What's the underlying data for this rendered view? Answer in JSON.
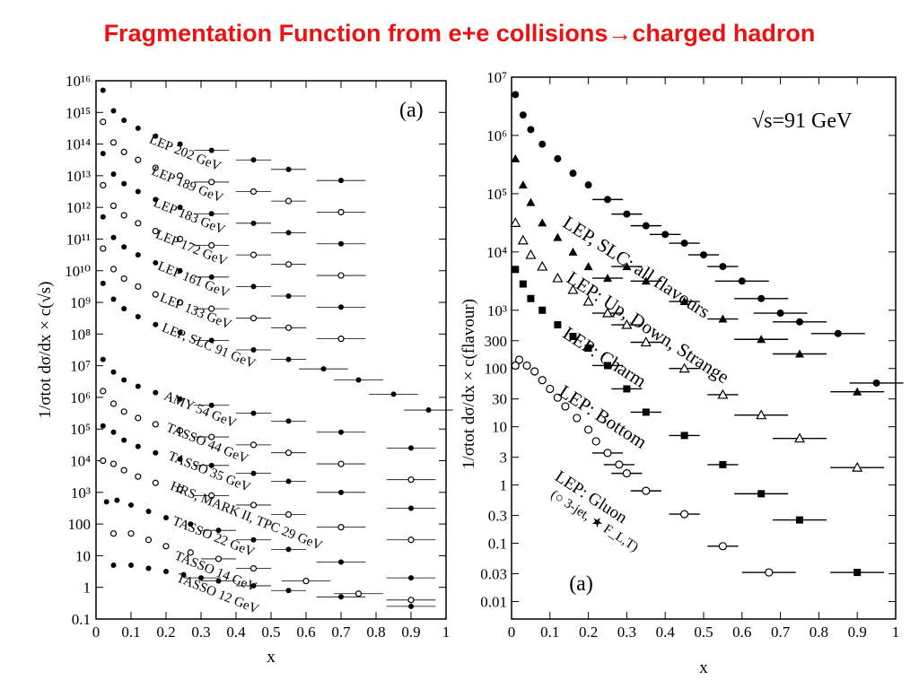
{
  "title": {
    "text": "Fragmentation Function from e+e collisions",
    "arrow": "→",
    "suffix": "charged hadron"
  },
  "chart_data": [
    {
      "type": "scatter",
      "panel_label": "(a)",
      "xlabel": "x",
      "ylabel": "1/σtot dσ/dx × c(√s)",
      "xlim": [
        0,
        1
      ],
      "ylim_log10": [
        -1,
        16
      ],
      "yscale": "log",
      "x_ticks": [
        "0",
        "0.1",
        "0.2",
        "0.3",
        "0.4",
        "0.5",
        "0.6",
        "0.7",
        "0.8",
        "0.9",
        "1"
      ],
      "y_ticks": [
        "0.1",
        "1",
        "10",
        "100",
        "10³",
        "10⁴",
        "10⁵",
        "10⁶",
        "10⁷",
        "10⁸",
        "10⁹",
        "10¹⁰",
        "10¹¹",
        "10¹²",
        "10¹³",
        "10¹⁴",
        "10¹⁵",
        "10¹⁶"
      ],
      "series": [
        {
          "name": "LEP 202 GeV",
          "marker": "filled",
          "scale": 15.7,
          "x": [
            0.02,
            0.05,
            0.08,
            0.12,
            0.17,
            0.24,
            0.33,
            0.45,
            0.55,
            0.7
          ],
          "y": [
            15.7,
            15.05,
            14.75,
            14.5,
            14.25,
            14.0,
            13.8,
            13.5,
            13.2,
            12.85
          ],
          "label": "LEP 202 GeV"
        },
        {
          "name": "LEP 189 GeV",
          "marker": "open",
          "scale": 14.7,
          "x": [
            0.02,
            0.05,
            0.08,
            0.12,
            0.17,
            0.24,
            0.33,
            0.45,
            0.55,
            0.7
          ],
          "y": [
            14.7,
            14.05,
            13.75,
            13.5,
            13.25,
            13.0,
            12.8,
            12.5,
            12.2,
            11.85
          ],
          "label": "LEP 189 GeV"
        },
        {
          "name": "LEP 183 GeV",
          "marker": "filled",
          "scale": 13.7,
          "x": [
            0.02,
            0.05,
            0.08,
            0.12,
            0.17,
            0.24,
            0.33,
            0.45,
            0.55,
            0.7
          ],
          "y": [
            13.7,
            13.05,
            12.75,
            12.5,
            12.25,
            12.0,
            11.8,
            11.5,
            11.2,
            10.85
          ],
          "label": "LEP 183 GeV"
        },
        {
          "name": "LEP 172 GeV",
          "marker": "open",
          "scale": 12.7,
          "x": [
            0.02,
            0.05,
            0.08,
            0.12,
            0.17,
            0.24,
            0.33,
            0.45,
            0.55,
            0.7
          ],
          "y": [
            12.7,
            12.05,
            11.75,
            11.5,
            11.25,
            11.0,
            10.8,
            10.5,
            10.2,
            9.85
          ],
          "label": "LEP 172 GeV"
        },
        {
          "name": "LEP 161 GeV",
          "marker": "filled",
          "scale": 11.7,
          "x": [
            0.02,
            0.05,
            0.08,
            0.12,
            0.17,
            0.24,
            0.33,
            0.45,
            0.55,
            0.7
          ],
          "y": [
            11.7,
            11.05,
            10.75,
            10.5,
            10.25,
            10.0,
            9.8,
            9.5,
            9.2,
            8.85
          ],
          "label": "LEP 161 GeV"
        },
        {
          "name": "LEP 133 GeV",
          "marker": "open",
          "scale": 10.7,
          "x": [
            0.02,
            0.05,
            0.08,
            0.12,
            0.17,
            0.24,
            0.33,
            0.45,
            0.55,
            0.7
          ],
          "y": [
            10.7,
            10.05,
            9.75,
            9.5,
            9.25,
            9.0,
            8.8,
            8.5,
            8.2,
            7.85
          ],
          "label": "LEP 133 GeV"
        },
        {
          "name": "LEP, SLC 91 GeV",
          "marker": "filled",
          "scale": 9.7,
          "x": [
            0.02,
            0.05,
            0.08,
            0.12,
            0.17,
            0.24,
            0.33,
            0.45,
            0.55,
            0.65,
            0.75,
            0.85,
            0.95
          ],
          "y": [
            9.6,
            9.1,
            8.8,
            8.55,
            8.3,
            8.05,
            7.8,
            7.5,
            7.2,
            6.9,
            6.55,
            6.1,
            5.6
          ],
          "label": "LEP, SLC 91 GeV"
        },
        {
          "name": "AMY 54 GeV",
          "marker": "filled",
          "scale": 7.2,
          "x": [
            0.02,
            0.05,
            0.08,
            0.12,
            0.17,
            0.24,
            0.33,
            0.45,
            0.55,
            0.7,
            0.9
          ],
          "y": [
            7.2,
            6.8,
            6.55,
            6.35,
            6.15,
            5.95,
            5.75,
            5.5,
            5.25,
            4.9,
            4.4
          ],
          "label": "AMY 54 GeV"
        },
        {
          "name": "TASSO 44 GeV",
          "marker": "open",
          "scale": 6.2,
          "x": [
            0.02,
            0.05,
            0.08,
            0.12,
            0.17,
            0.24,
            0.33,
            0.45,
            0.55,
            0.7,
            0.9
          ],
          "y": [
            6.2,
            5.8,
            5.55,
            5.35,
            5.15,
            4.95,
            4.75,
            4.5,
            4.25,
            3.9,
            3.4
          ],
          "label": "TASSO 44 GeV"
        },
        {
          "name": "TASSO 35 GeV",
          "marker": "filled",
          "scale": 5.2,
          "x": [
            0.02,
            0.05,
            0.08,
            0.12,
            0.17,
            0.24,
            0.33,
            0.45,
            0.55,
            0.7,
            0.9
          ],
          "y": [
            5.1,
            4.9,
            4.65,
            4.45,
            4.25,
            4.05,
            3.85,
            3.6,
            3.35,
            3.0,
            2.5
          ],
          "label": "TASSO 35 GeV"
        },
        {
          "name": "HRS, MARK II, TPC 29 GeV",
          "marker": "open",
          "scale": 4.2,
          "x": [
            0.02,
            0.05,
            0.08,
            0.12,
            0.17,
            0.24,
            0.33,
            0.45,
            0.55,
            0.7,
            0.9
          ],
          "y": [
            4.0,
            3.9,
            3.7,
            3.5,
            3.3,
            3.1,
            2.9,
            2.6,
            2.3,
            1.9,
            1.5
          ],
          "label": "HRS, MARK II, TPC 29 GeV"
        },
        {
          "name": "TASSO 22 GeV",
          "marker": "filled",
          "scale": 2.8,
          "x": [
            0.03,
            0.06,
            0.1,
            0.15,
            0.2,
            0.27,
            0.35,
            0.45,
            0.55,
            0.7,
            0.9
          ],
          "y": [
            2.7,
            2.75,
            2.6,
            2.4,
            2.2,
            2.0,
            1.8,
            1.5,
            1.2,
            0.8,
            0.3
          ],
          "label": "TASSO 22 GeV"
        },
        {
          "name": "TASSO 14 GeV",
          "marker": "open",
          "scale": 1.8,
          "x": [
            0.05,
            0.1,
            0.15,
            0.2,
            0.27,
            0.35,
            0.45,
            0.6,
            0.75,
            0.9
          ],
          "y": [
            1.7,
            1.7,
            1.5,
            1.3,
            1.1,
            0.9,
            0.6,
            0.2,
            -0.2,
            -0.4
          ],
          "label": "TASSO 14 GeV"
        },
        {
          "name": "TASSO 12 GeV",
          "marker": "filled",
          "scale": 0.8,
          "x": [
            0.05,
            0.1,
            0.15,
            0.2,
            0.25,
            0.3,
            0.35,
            0.45,
            0.55,
            0.7,
            0.9
          ],
          "y": [
            0.7,
            0.7,
            0.6,
            0.5,
            0.4,
            0.3,
            0.2,
            0.05,
            -0.1,
            -0.3,
            -0.6
          ],
          "label": "TASSO 12 GeV"
        }
      ],
      "labels": [
        "LEP 202 GeV",
        "LEP 189 GeV",
        "LEP 183 GeV",
        "LEP 172 GeV",
        "LEP 161 GeV",
        "LEP 133 GeV",
        "LEP, SLC 91 GeV",
        "AMY 54 GeV",
        "TASSO 44 GeV",
        "TASSO 35 GeV",
        "HRS, MARK II, TPC 29 GeV",
        "TASSO 22 GeV",
        "TASSO 14 GeV",
        "TASSO 12 GeV"
      ]
    },
    {
      "type": "scatter",
      "panel_label": "(a)",
      "annotation": "√s=91 GeV",
      "xlabel": "x",
      "ylabel": "1/σtot dσ/dx × c(flavour)",
      "xlim": [
        0,
        1
      ],
      "ylim_log10": [
        -2.3,
        7
      ],
      "yscale": "log",
      "x_ticks": [
        "0",
        "0.1",
        "0.2",
        "0.3",
        "0.4",
        "0.5",
        "0.6",
        "0.7",
        "0.8",
        "0.9",
        "1"
      ],
      "y_ticks": [
        {
          "v": 7,
          "t": "10⁷"
        },
        {
          "v": 6,
          "t": "10⁶"
        },
        {
          "v": 5,
          "t": "10⁵"
        },
        {
          "v": 4,
          "t": "10⁴"
        },
        {
          "v": 3,
          "t": "10³"
        },
        {
          "v": 2.477,
          "t": "300"
        },
        {
          "v": 2,
          "t": "100"
        },
        {
          "v": 1.477,
          "t": "30"
        },
        {
          "v": 1,
          "t": "10"
        },
        {
          "v": 0.477,
          "t": "3"
        },
        {
          "v": 0,
          "t": "1"
        },
        {
          "v": -0.523,
          "t": "0.3"
        },
        {
          "v": -1,
          "t": "0.1"
        },
        {
          "v": -1.523,
          "t": "0.03"
        },
        {
          "v": -2,
          "t": "0.01"
        }
      ],
      "series": [
        {
          "name": "LEP, SLC: all flavours",
          "marker": "circle-filled",
          "x": [
            0.01,
            0.03,
            0.05,
            0.08,
            0.12,
            0.16,
            0.2,
            0.25,
            0.3,
            0.35,
            0.4,
            0.45,
            0.5,
            0.55,
            0.6,
            0.65,
            0.7,
            0.75,
            0.85,
            0.95
          ],
          "y": [
            6.7,
            6.35,
            6.1,
            5.85,
            5.6,
            5.35,
            5.15,
            4.9,
            4.65,
            4.45,
            4.3,
            4.15,
            3.95,
            3.75,
            3.5,
            3.2,
            2.95,
            2.8,
            2.6,
            1.75
          ]
        },
        {
          "name": "LEP: Up, Down, Strange",
          "marker": "triangle-filled",
          "x": [
            0.01,
            0.03,
            0.05,
            0.08,
            0.12,
            0.16,
            0.2,
            0.25,
            0.3,
            0.35,
            0.45,
            0.55,
            0.65,
            0.75,
            0.9
          ],
          "y": [
            5.6,
            5.15,
            4.85,
            4.5,
            4.25,
            4.0,
            3.75,
            3.55,
            3.75,
            3.5,
            3.15,
            2.85,
            2.5,
            2.25,
            1.6
          ]
        },
        {
          "name": "LEP: Charm",
          "marker": "triangle-open",
          "x": [
            0.01,
            0.03,
            0.05,
            0.08,
            0.12,
            0.16,
            0.2,
            0.25,
            0.3,
            0.35,
            0.45,
            0.55,
            0.65,
            0.75,
            0.9
          ],
          "y": [
            4.5,
            4.2,
            3.95,
            3.75,
            3.55,
            3.35,
            3.15,
            2.95,
            2.75,
            2.45,
            2.0,
            1.55,
            1.2,
            0.8,
            0.3
          ]
        },
        {
          "name": "LEP: Bottom",
          "marker": "square-filled",
          "x": [
            0.01,
            0.03,
            0.05,
            0.08,
            0.12,
            0.16,
            0.2,
            0.25,
            0.3,
            0.35,
            0.45,
            0.55,
            0.65,
            0.75,
            0.9
          ],
          "y": [
            3.7,
            3.45,
            3.2,
            3.0,
            2.75,
            2.55,
            2.35,
            2.05,
            1.65,
            1.25,
            0.85,
            0.35,
            -0.15,
            -0.6,
            -1.5
          ]
        },
        {
          "name": "LEP: Gluon (○ 3-jet, ★ F_L,T)",
          "marker": "circle-open",
          "x": [
            0.01,
            0.02,
            0.04,
            0.06,
            0.08,
            0.1,
            0.12,
            0.14,
            0.17,
            0.2,
            0.22,
            0.25,
            0.28,
            0.3,
            0.35,
            0.45,
            0.55,
            0.67
          ],
          "y": [
            2.05,
            2.15,
            2.05,
            1.95,
            1.8,
            1.65,
            1.5,
            1.35,
            1.15,
            0.95,
            0.75,
            0.55,
            0.35,
            0.2,
            -0.1,
            -0.5,
            -1.05,
            -1.5
          ]
        }
      ],
      "labels": [
        "LEP, SLC: all flavours",
        "LEP: Up, Down, Strange",
        "LEP: Charm",
        "LEP: Bottom",
        "LEP: Gluon",
        "(○ 3-jet, ★ F_L,T)"
      ]
    }
  ]
}
